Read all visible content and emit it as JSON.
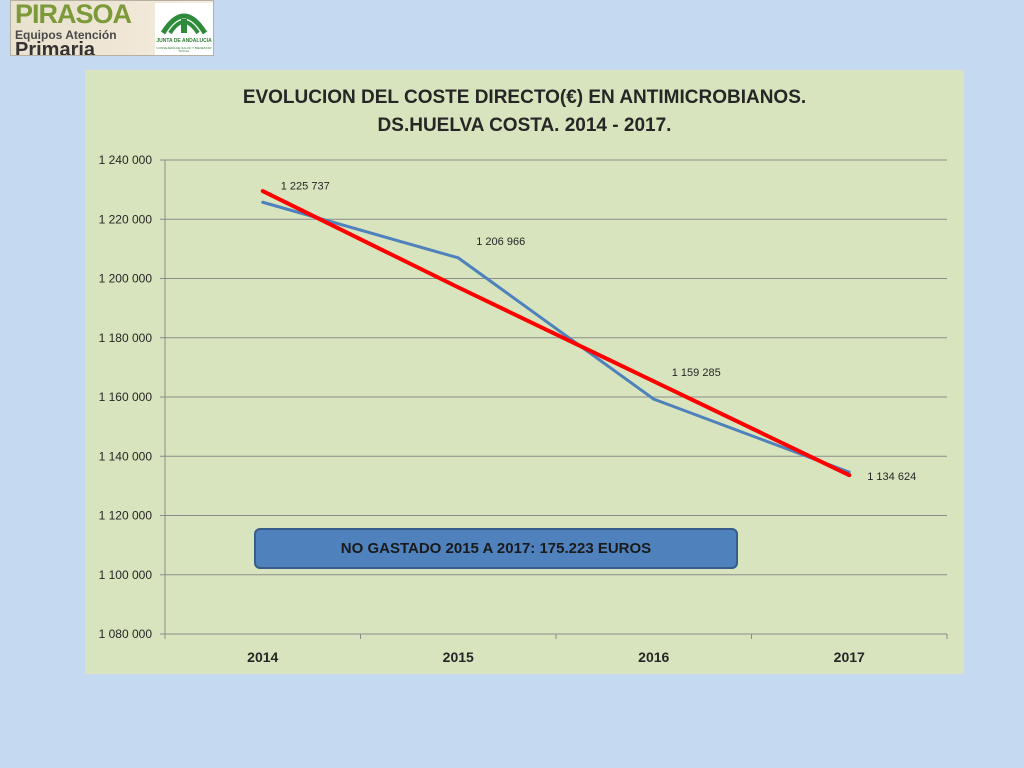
{
  "logo": {
    "line1": "PIRASOA",
    "line2": "Equipos Atención",
    "line3": "Primaria",
    "junta_text": "JUNTA DE ANDALUCIA",
    "junta_sub": "CONSEJERÍA DE SALUD Y BIENESTAR SOCIAL"
  },
  "note": "NO GASTADO 2015 A 2017: 175.223 EUROS",
  "chart_data": {
    "type": "line",
    "title_lines": [
      "EVOLUCION DEL COSTE DIRECTO(€) EN ANTIMICROBIANOS.",
      "DS.HUELVA COSTA. 2014 - 2017."
    ],
    "categories": [
      "2014",
      "2015",
      "2016",
      "2017"
    ],
    "series": [
      {
        "values": [
          1225737,
          1206966,
          1159285,
          1134624
        ],
        "data_labels": [
          "1 225 737",
          "1 206 966",
          "1 159 285",
          "1 134 624"
        ],
        "color": "#4f81bd"
      },
      {
        "kind": "trendline",
        "values": [
          1229500,
          1197000,
          1165300,
          1133600
        ],
        "color": "#ff0000"
      }
    ],
    "ylim": [
      1080000,
      1240000
    ],
    "ytick_labels": [
      "1 080 000",
      "1 100 000",
      "1 120 000",
      "1 140 000",
      "1 160 000",
      "1 180 000",
      "1 200 000",
      "1 220 000",
      "1 240 000"
    ],
    "grid": true,
    "legend": "none"
  },
  "colors": {
    "background": "#c5d9f1",
    "plot_area": "#d7e4bd",
    "gridline": "#8c8c8c",
    "series": "#4f81bd",
    "trend": "#ff0000",
    "note_fill": "#4f81bd"
  }
}
